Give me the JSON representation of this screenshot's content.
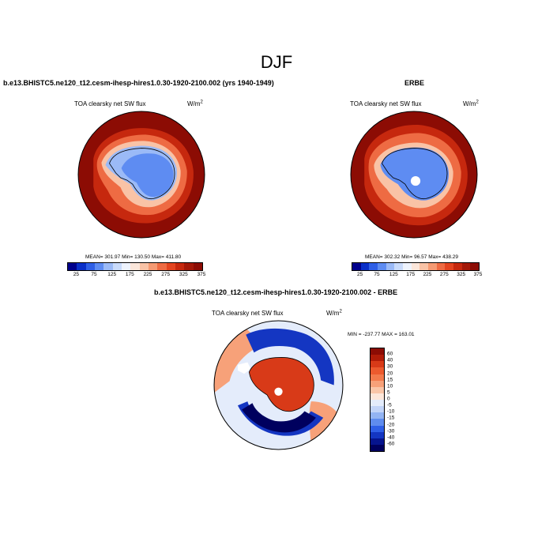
{
  "main_title": "DJF",
  "panels": [
    {
      "title": "b.e13.BHISTC5.ne120_t12.cesm-ihesp-hires1.0.30-1920-2100.002 (yrs 1940-1949)",
      "variable": "TOA clearsky net SW flux",
      "units": "W/m",
      "units_exp": "2",
      "stats": "MEAN= 301.97  Min= 130.50  Max= 411.80"
    },
    {
      "title": "ERBE",
      "variable": "TOA clearsky net SW flux",
      "units": "W/m",
      "units_exp": "2",
      "stats": "MEAN= 302.32  Min=  96.57  Max= 438.29"
    },
    {
      "title": "b.e13.BHISTC5.ne120_t12.cesm-ihesp-hires1.0.30-1920-2100.002 - ERBE",
      "variable": "TOA clearsky net SW flux",
      "units": "W/m",
      "units_exp": "2",
      "stats": "MIN = -237.77  MAX = 163.01"
    }
  ],
  "abs_colorbar": {
    "labels": [
      "25",
      "75",
      "125",
      "175",
      "225",
      "275",
      "325",
      "375"
    ],
    "colors": [
      "#00008c",
      "#0a2fc8",
      "#2f5fe6",
      "#5e8cf2",
      "#9bbaf7",
      "#c9dbfb",
      "#eef3fd",
      "#fbe6da",
      "#f9c3a6",
      "#f59a73",
      "#ee6b43",
      "#e34420",
      "#c6280e",
      "#a31808",
      "#8c0c04"
    ]
  },
  "diff_colorbar": {
    "labels": [
      "60",
      "40",
      "30",
      "20",
      "15",
      "10",
      "5",
      "0",
      "-5",
      "-10",
      "-15",
      "-20",
      "-30",
      "-40",
      "-60"
    ],
    "colors": [
      "#8c0c04",
      "#b01c08",
      "#d83a18",
      "#ec5a2e",
      "#f37a4c",
      "#f7a179",
      "#fac6a8",
      "#fde7da",
      "#e4ecfb",
      "#c2d4f8",
      "#93b4f3",
      "#5f8cee",
      "#2f5fe6",
      "#1436c2",
      "#06148e",
      "#00005e"
    ]
  },
  "map_colors": {
    "ocean_dark": "#8c0c04",
    "ocean_mid": "#c6280e",
    "ocean_orange": "#ee6b43",
    "ocean_light": "#f9c3a6",
    "ice_light": "#9bbaf7",
    "ice_blue": "#5e8cf2",
    "diff_land": "#d83a18",
    "diff_blue": "#1436c2",
    "diff_navy": "#00005e",
    "diff_pale": "#f7a179"
  }
}
